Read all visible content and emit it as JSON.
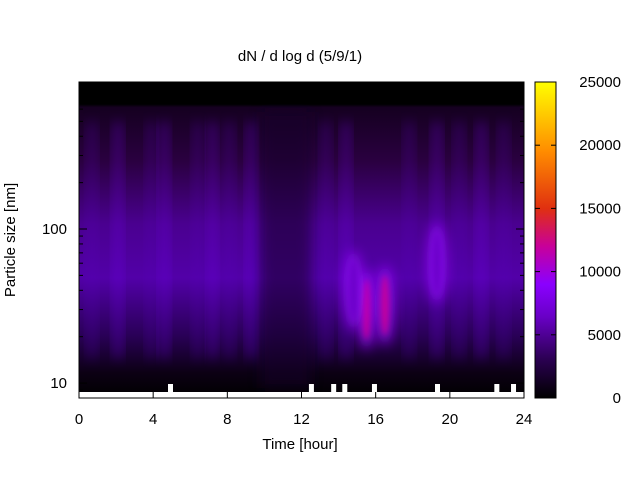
{
  "chart_data": {
    "type": "heatmap",
    "title": "dN / d log d (5/9/1)",
    "xlabel": "Time [hour]",
    "ylabel": "Particle size [nm]",
    "x_range": [
      0,
      24
    ],
    "x_ticks": [
      0,
      4,
      8,
      12,
      16,
      20,
      24
    ],
    "y_scale": "log",
    "y_range_nm": [
      8,
      900
    ],
    "y_ticks": [
      10,
      100
    ],
    "colorbar": {
      "range": [
        0,
        25000
      ],
      "ticks": [
        0,
        5000,
        10000,
        15000,
        20000,
        25000
      ],
      "colormap": [
        "#000000",
        "#2a0050",
        "#6a00c8",
        "#8a00ff",
        "#c8009a",
        "#e03010",
        "#ff8c00",
        "#ffff00"
      ]
    },
    "hotspots": [
      {
        "time_hour": 15.5,
        "size_nm": 30,
        "value": 16000
      },
      {
        "time_hour": 16.5,
        "size_nm": 32,
        "value": 13000
      },
      {
        "time_hour": 14.8,
        "size_nm": 40,
        "value": 7000
      },
      {
        "time_hour": 19.3,
        "size_nm": 60,
        "value": 6000
      }
    ],
    "grid": false,
    "legend": "colorbar-right"
  }
}
